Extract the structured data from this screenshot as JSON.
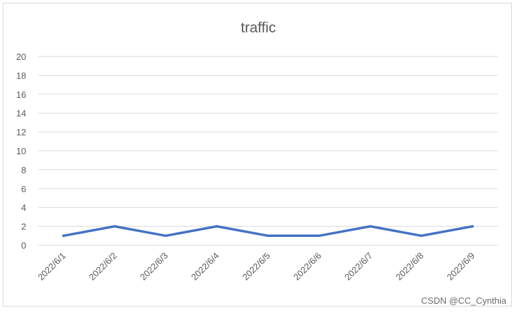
{
  "chart_data": {
    "type": "line",
    "title": "traffic",
    "xlabel": "",
    "ylabel": "",
    "categories": [
      "2022/6/1",
      "2022/6/2",
      "2022/6/3",
      "2022/6/4",
      "2022/6/5",
      "2022/6/6",
      "2022/6/7",
      "2022/6/8",
      "2022/6/9"
    ],
    "series": [
      {
        "values": [
          1,
          2,
          1,
          2,
          1,
          1,
          2,
          1,
          2
        ],
        "color": "#4472c4"
      }
    ],
    "ylim": [
      0,
      20
    ],
    "yticks": [
      0,
      2,
      4,
      6,
      8,
      10,
      12,
      14,
      16,
      18,
      20
    ],
    "grid": true,
    "legend": "none"
  },
  "watermark": "CSDN @CC_Cynthia"
}
